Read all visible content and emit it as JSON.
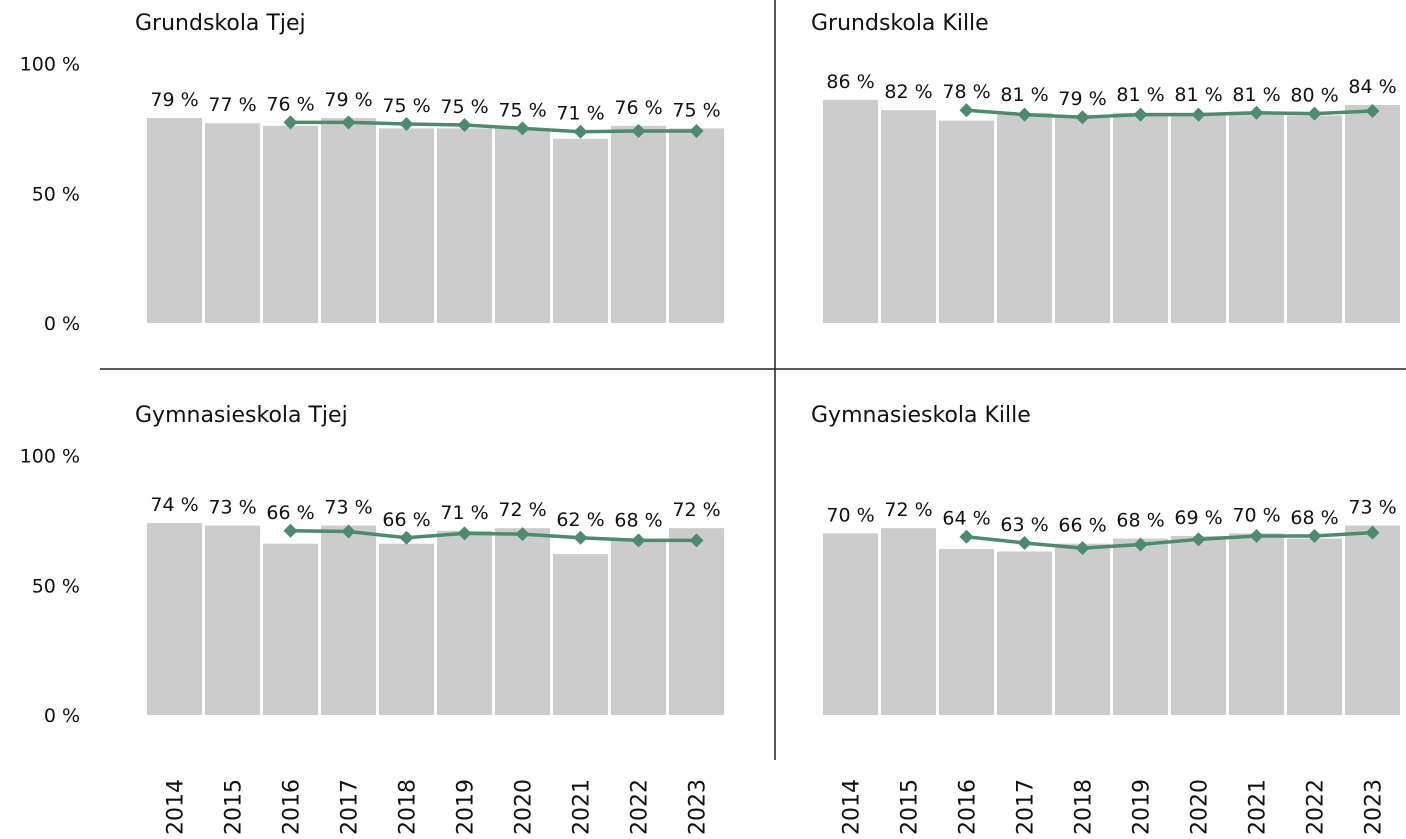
{
  "chart_data": [
    {
      "type": "bar",
      "title": "Grundskola Tjej",
      "ylim": [
        0,
        100
      ],
      "yticks": [
        {
          "value": 0,
          "label": "0 %"
        },
        {
          "value": 50,
          "label": "50 %"
        },
        {
          "value": 100,
          "label": "100 %"
        }
      ],
      "series": [
        {
          "type": "bar",
          "color": "#cccccc",
          "values": [
            79,
            77,
            76,
            79,
            75,
            75,
            75,
            71,
            76,
            75
          ],
          "value_labels": [
            "79 %",
            "77 %",
            "76 %",
            "79 %",
            "75 %",
            "75 %",
            "75 %",
            "71 %",
            "76 %",
            "75 %"
          ]
        },
        {
          "type": "line",
          "color": "#4d8a6f",
          "values": [
            null,
            null,
            77.3,
            77.3,
            76.7,
            76.3,
            75,
            73.7,
            74,
            74
          ]
        }
      ]
    },
    {
      "type": "bar",
      "title": "Grundskola Kille",
      "ylim": [
        0,
        100
      ],
      "series": [
        {
          "type": "bar",
          "color": "#cccccc",
          "values": [
            86,
            82,
            78,
            81,
            79,
            81,
            81,
            81,
            80,
            84
          ],
          "value_labels": [
            "86 %",
            "82 %",
            "78 %",
            "81 %",
            "79 %",
            "81 %",
            "81 %",
            "81 %",
            "80 %",
            "84 %"
          ]
        },
        {
          "type": "line",
          "color": "#4d8a6f",
          "values": [
            null,
            null,
            82,
            80.3,
            79.3,
            80.3,
            80.3,
            81,
            80.7,
            81.7
          ]
        }
      ]
    },
    {
      "type": "bar",
      "title": "Gymnasieskola Tjej",
      "ylim": [
        0,
        100
      ],
      "yticks": [
        {
          "value": 0,
          "label": "0 %"
        },
        {
          "value": 50,
          "label": "50 %"
        },
        {
          "value": 100,
          "label": "100 %"
        }
      ],
      "categories": [
        "2014",
        "2015",
        "2016",
        "2017",
        "2018",
        "2019",
        "2020",
        "2021",
        "2022",
        "2023"
      ],
      "series": [
        {
          "type": "bar",
          "color": "#cccccc",
          "values": [
            74,
            73,
            66,
            73,
            66,
            71,
            72,
            62,
            68,
            72
          ],
          "value_labels": [
            "74 %",
            "73 %",
            "66 %",
            "73 %",
            "66 %",
            "71 %",
            "72 %",
            "62 %",
            "68 %",
            "72 %"
          ]
        },
        {
          "type": "line",
          "color": "#4d8a6f",
          "values": [
            null,
            null,
            71,
            70.7,
            68.3,
            70,
            69.7,
            68.3,
            67.3,
            67.3
          ]
        }
      ]
    },
    {
      "type": "bar",
      "title": "Gymnasieskola Kille",
      "ylim": [
        0,
        100
      ],
      "categories": [
        "2014",
        "2015",
        "2016",
        "2017",
        "2018",
        "2019",
        "2020",
        "2021",
        "2022",
        "2023"
      ],
      "series": [
        {
          "type": "bar",
          "color": "#cccccc",
          "values": [
            70,
            72,
            64,
            63,
            66,
            68,
            69,
            70,
            68,
            73
          ],
          "value_labels": [
            "70 %",
            "72 %",
            "64 %",
            "63 %",
            "66 %",
            "68 %",
            "69 %",
            "70 %",
            "68 %",
            "73 %"
          ]
        },
        {
          "type": "line",
          "color": "#4d8a6f",
          "values": [
            null,
            null,
            68.7,
            66.3,
            64.3,
            65.7,
            67.7,
            69,
            69,
            70.3
          ]
        }
      ]
    }
  ]
}
